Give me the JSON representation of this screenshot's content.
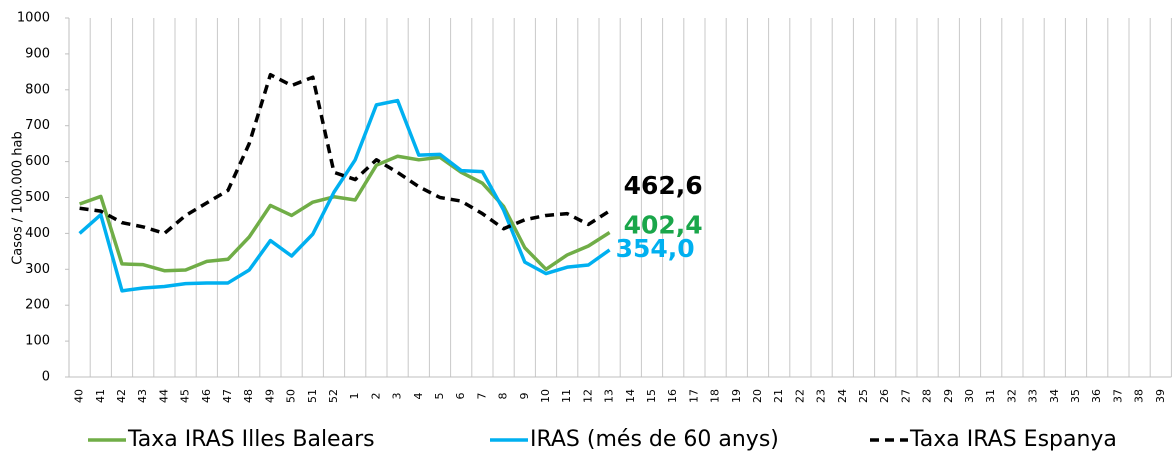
{
  "chart_data": {
    "type": "line",
    "y_label": "Casos / 100.000 hab",
    "categories": [
      "40",
      "41",
      "42",
      "43",
      "44",
      "45",
      "46",
      "47",
      "48",
      "49",
      "50",
      "51",
      "52",
      "1",
      "2",
      "3",
      "4",
      "5",
      "6",
      "7",
      "8",
      "9",
      "10",
      "11",
      "12",
      "13",
      "14",
      "15",
      "16",
      "17",
      "18",
      "19",
      "20",
      "21",
      "22",
      "23",
      "24",
      "25",
      "26",
      "27",
      "28",
      "29",
      "30",
      "31",
      "32",
      "33",
      "34",
      "35",
      "36",
      "37",
      "38",
      "39"
    ],
    "ylim": [
      0,
      1000
    ],
    "yticks": [
      0,
      100,
      200,
      300,
      400,
      500,
      600,
      700,
      800,
      900,
      1000
    ],
    "series": [
      {
        "name": "Taxa IRAS Illes Balears",
        "color": "#70ad47",
        "label_color": "#1aa64a",
        "dash": false,
        "values": [
          482,
          503,
          315,
          313,
          296,
          298,
          322,
          328,
          390,
          478,
          450,
          487,
          502,
          493,
          590,
          615,
          605,
          612,
          570,
          540,
          475,
          360,
          300,
          340,
          365,
          402.4,
          null,
          null,
          null,
          null,
          null,
          null,
          null,
          null,
          null,
          null,
          null,
          null,
          null,
          null,
          null,
          null,
          null,
          null,
          null,
          null,
          null,
          null,
          null,
          null,
          null,
          null
        ],
        "value_labels": [
          null,
          null,
          null,
          null,
          null,
          null,
          null,
          null,
          null,
          null,
          null,
          null,
          null,
          null,
          null,
          null,
          null,
          null,
          null,
          null,
          null,
          null,
          null,
          null,
          null,
          "402,4",
          null,
          null,
          null,
          null,
          null,
          null,
          null,
          null,
          null,
          null,
          null,
          null,
          null,
          null,
          null,
          null,
          null,
          null,
          null,
          null,
          null,
          null,
          null,
          null,
          null,
          null
        ]
      },
      {
        "name": "IRAS (més de 60 anys)",
        "color": "#00b0f0",
        "label_color": "#00b0f0",
        "dash": false,
        "values": [
          400,
          452,
          240,
          248,
          252,
          260,
          262,
          262,
          298,
          380,
          337,
          398,
          515,
          605,
          758,
          770,
          618,
          620,
          575,
          572,
          465,
          320,
          288,
          306,
          312,
          354.0,
          null,
          null,
          null,
          null,
          null,
          null,
          null,
          null,
          null,
          null,
          null,
          null,
          null,
          null,
          null,
          null,
          null,
          null,
          null,
          null,
          null,
          null,
          null,
          null,
          null,
          null
        ],
        "value_labels": [
          null,
          null,
          null,
          null,
          null,
          null,
          null,
          null,
          null,
          null,
          null,
          null,
          null,
          null,
          null,
          null,
          null,
          null,
          null,
          null,
          null,
          null,
          null,
          null,
          null,
          "354,0",
          null,
          null,
          null,
          null,
          null,
          null,
          null,
          null,
          null,
          null,
          null,
          null,
          null,
          null,
          null,
          null,
          null,
          null,
          null,
          null,
          null,
          null,
          null,
          null,
          null,
          null
        ]
      },
      {
        "name": "Taxa IRAS Espanya",
        "color": "#000000",
        "label_color": "#000000",
        "dash": true,
        "values": [
          470,
          462,
          430,
          418,
          400,
          450,
          485,
          520,
          650,
          842,
          812,
          835,
          570,
          550,
          605,
          570,
          530,
          500,
          490,
          455,
          413,
          438,
          450,
          455,
          425,
          462.6,
          null,
          null,
          null,
          null,
          null,
          null,
          null,
          null,
          null,
          null,
          null,
          null,
          null,
          null,
          null,
          null,
          null,
          null,
          null,
          null,
          null,
          null,
          null,
          null,
          null,
          null
        ],
        "value_labels": [
          null,
          null,
          null,
          null,
          null,
          null,
          null,
          null,
          null,
          null,
          null,
          null,
          null,
          null,
          null,
          null,
          null,
          null,
          null,
          null,
          null,
          null,
          null,
          null,
          null,
          "462,6",
          null,
          null,
          null,
          null,
          null,
          null,
          null,
          null,
          null,
          null,
          null,
          null,
          null,
          null,
          null,
          null,
          null,
          null,
          null,
          null,
          null,
          null,
          null,
          null,
          null,
          null
        ]
      }
    ]
  }
}
